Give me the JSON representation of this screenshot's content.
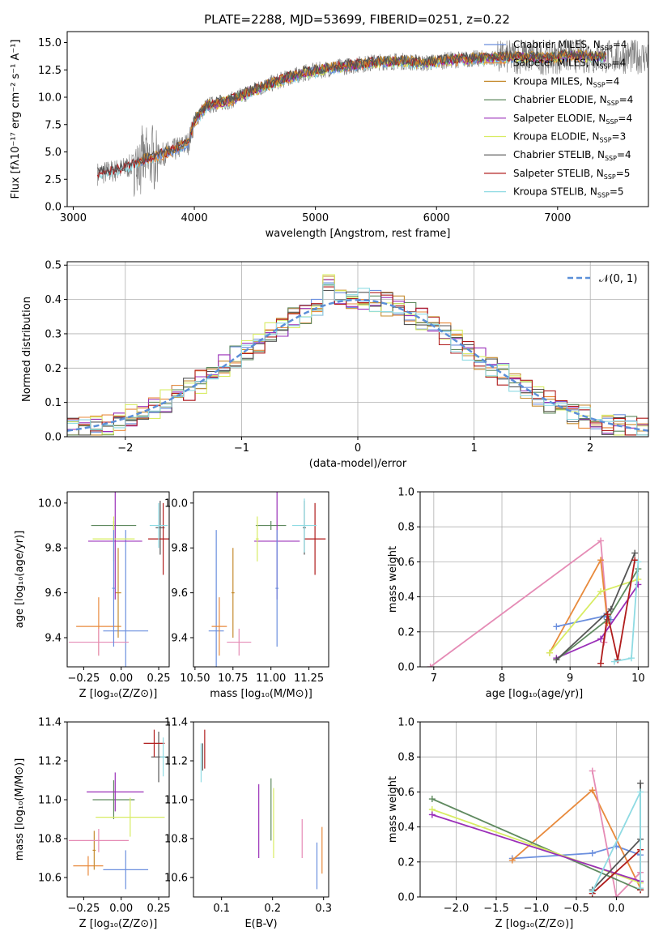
{
  "title": "PLATE=2288, MJD=53699, FIBERID=0251, z=0.22",
  "colors": {
    "chabrier_miles": "#6b8fde",
    "salpeter_miles": "#e88a3c",
    "kroupa_miles": "#c58b2e",
    "chabrier_elodie": "#5f8a5f",
    "salpeter_elodie": "#9a2fb8",
    "kroupa_elodie": "#d8ec63",
    "chabrier_stelib": "#555555",
    "salpeter_stelib": "#b01c1c",
    "kroupa_stelib": "#8fdbe3",
    "extra_pink": "#e58bb5",
    "normal": "#5b8fd8",
    "data_gray": "#777777"
  },
  "chart_data": [
    {
      "id": "spectrum",
      "type": "line",
      "xlabel": "wavelength [Angstrom, rest frame]",
      "ylabel": "Flux [fλ10⁻¹⁷ erg cm⁻² s⁻¹ A⁻¹]",
      "xlim": [
        2950,
        7750
      ],
      "ylim": [
        0,
        16
      ],
      "xticks": [
        "3000",
        "4000",
        "5000",
        "6000",
        "7000"
      ],
      "yticks": [
        "0.0",
        "2.5",
        "5.0",
        "7.5",
        "10.0",
        "12.5",
        "15.0"
      ],
      "grid": false,
      "legend_position": "top-right",
      "legend": [
        {
          "label": "Chabrier MILES, N",
          "sub": "SSP",
          "tail": "=4",
          "color_key": "chabrier_miles"
        },
        {
          "label": "Salpeter MILES, N",
          "sub": "SSP",
          "tail": "=4",
          "color_key": "salpeter_miles"
        },
        {
          "label": "Kroupa MILES, N",
          "sub": "SSP",
          "tail": "=4",
          "color_key": "kroupa_miles"
        },
        {
          "label": "Chabrier ELODIE, N",
          "sub": "SSP",
          "tail": "=4",
          "color_key": "chabrier_elodie"
        },
        {
          "label": "Salpeter ELODIE, N",
          "sub": "SSP",
          "tail": "=4",
          "color_key": "salpeter_elodie"
        },
        {
          "label": "Kroupa ELODIE, N",
          "sub": "SSP",
          "tail": "=3",
          "color_key": "kroupa_elodie"
        },
        {
          "label": "Chabrier STELIB, N",
          "sub": "SSP",
          "tail": "=4",
          "color_key": "chabrier_stelib"
        },
        {
          "label": "Salpeter STELIB, N",
          "sub": "SSP",
          "tail": "=5",
          "color_key": "salpeter_stelib"
        },
        {
          "label": "Kroupa STELIB, N",
          "sub": "SSP",
          "tail": "=5",
          "color_key": "kroupa_stelib"
        }
      ],
      "trend": {
        "x": [
          3200,
          3400,
          3600,
          3800,
          3950,
          4000,
          4100,
          4300,
          4500,
          4700,
          4900,
          5100,
          5300,
          5500,
          5700,
          5900,
          6100,
          6300,
          6500,
          6700,
          6900,
          7100,
          7300
        ],
        "y": [
          3.0,
          3.4,
          4.3,
          5.0,
          5.8,
          7.8,
          9.2,
          9.7,
          10.7,
          11.5,
          12.2,
          12.6,
          12.9,
          13.2,
          13.3,
          13.1,
          13.4,
          13.5,
          13.6,
          13.7,
          13.6,
          13.8,
          13.7
        ]
      }
    },
    {
      "id": "residuals",
      "type": "histogram",
      "xlabel": "(data-model)/error",
      "ylabel": "Normed distribution",
      "xlim": [
        -2.5,
        2.5
      ],
      "ylim": [
        0,
        0.51
      ],
      "xticks": [
        "−2",
        "−1",
        "0",
        "1",
        "2"
      ],
      "yticks": [
        "0.0",
        "0.1",
        "0.2",
        "0.3",
        "0.4",
        "0.5"
      ],
      "grid": true,
      "legend_position": "top-right",
      "legend": [
        {
          "label": "𝒩(0, 1)",
          "color_key": "normal",
          "style": "dashed"
        }
      ],
      "bin_width": 0.1
    },
    {
      "id": "age_vs_Z",
      "type": "errorbar",
      "xlabel": "Z [log₁₀(Z/Z⊙)]",
      "ylabel": "age  [log₁₀(age/yr)]",
      "xlim": [
        -0.36,
        0.32
      ],
      "ylim": [
        9.27,
        10.05
      ],
      "xticks": [
        "−0.25",
        "0.00",
        "0.25"
      ],
      "yticks": [
        "9.4",
        "9.6",
        "9.8",
        "10.0"
      ],
      "points": [
        {
          "color_key": "chabrier_miles",
          "x": 0.03,
          "xerr": 0.15,
          "y": 9.43,
          "yerr": 0.45
        },
        {
          "color_key": "salpeter_miles",
          "x": -0.15,
          "xerr": 0.15,
          "y": 9.45,
          "yerr": 0.13
        },
        {
          "color_key": "kroupa_miles",
          "x": -0.02,
          "xerr": 0.02,
          "y": 9.6,
          "yerr": 0.2
        },
        {
          "color_key": "chabrier_elodie",
          "x": -0.05,
          "xerr": 0.15,
          "y": 9.9,
          "yerr": 0.02
        },
        {
          "color_key": "salpeter_elodie",
          "x": -0.04,
          "xerr": 0.18,
          "y": 9.83,
          "yerr": 0.26
        },
        {
          "color_key": "kroupa_elodie",
          "x": -0.05,
          "xerr": 0.14,
          "y": 9.84,
          "yerr": 0.1
        },
        {
          "color_key": "chabrier_stelib",
          "x": 0.26,
          "xerr": 0.03,
          "y": 9.89,
          "yerr": 0.12
        },
        {
          "color_key": "salpeter_stelib",
          "x": 0.28,
          "xerr": 0.1,
          "y": 9.84,
          "yerr": 0.16
        },
        {
          "color_key": "kroupa_stelib",
          "x": 0.25,
          "xerr": 0.06,
          "y": 9.9,
          "yerr": 0.1
        },
        {
          "color_key": "extra_pink",
          "x": -0.15,
          "xerr": 0.2,
          "y": 9.38,
          "yerr": 0.06
        },
        {
          "color_key": "chabrier_miles",
          "x": -0.05,
          "xerr": 0.01,
          "y": 9.62,
          "yerr": 0.26
        }
      ]
    },
    {
      "id": "age_vs_mass",
      "type": "errorbar",
      "xlabel": "mass [log₁₀(M/M⊙)]",
      "ylabel": "",
      "xlim": [
        10.49,
        11.38
      ],
      "ylim": [
        9.27,
        10.05
      ],
      "xticks": [
        "10.50",
        "10.75",
        "11.00",
        "11.25"
      ],
      "yticks": [
        "9.4",
        "9.6",
        "9.8",
        "10.0"
      ],
      "points": [
        {
          "color_key": "chabrier_miles",
          "x": 10.64,
          "xerr": 0.05,
          "y": 9.43,
          "yerr": 0.45
        },
        {
          "color_key": "salpeter_miles",
          "x": 10.66,
          "xerr": 0.05,
          "y": 9.45,
          "yerr": 0.13
        },
        {
          "color_key": "kroupa_miles",
          "x": 10.75,
          "xerr": 0.01,
          "y": 9.6,
          "yerr": 0.2
        },
        {
          "color_key": "chabrier_elodie",
          "x": 11.0,
          "xerr": 0.1,
          "y": 9.9,
          "yerr": 0.02
        },
        {
          "color_key": "salpeter_elodie",
          "x": 11.04,
          "xerr": 0.15,
          "y": 9.83,
          "yerr": 0.26
        },
        {
          "color_key": "kroupa_elodie",
          "x": 10.91,
          "xerr": 0.01,
          "y": 9.84,
          "yerr": 0.1
        },
        {
          "color_key": "chabrier_stelib",
          "x": 11.22,
          "xerr": 0.01,
          "y": 9.89,
          "yerr": 0.12
        },
        {
          "color_key": "salpeter_stelib",
          "x": 11.29,
          "xerr": 0.07,
          "y": 9.84,
          "yerr": 0.16
        },
        {
          "color_key": "kroupa_stelib",
          "x": 11.22,
          "xerr": 0.08,
          "y": 9.9,
          "yerr": 0.12
        },
        {
          "color_key": "extra_pink",
          "x": 10.79,
          "xerr": 0.08,
          "y": 9.38,
          "yerr": 0.06
        },
        {
          "color_key": "chabrier_miles",
          "x": 11.04,
          "xerr": 0.01,
          "y": 9.62,
          "yerr": 0.26
        }
      ]
    },
    {
      "id": "mass_weight_vs_age",
      "type": "line",
      "xlabel": "age  [log₁₀(age/yr)]",
      "ylabel": "mass weight",
      "xlim": [
        6.8,
        10.15
      ],
      "ylim": [
        0,
        1.0
      ],
      "xticks": [
        "7",
        "8",
        "9",
        "10"
      ],
      "yticks": [
        "0.0",
        "0.2",
        "0.4",
        "0.6",
        "0.8",
        "1.0"
      ],
      "grid": true,
      "series": [
        {
          "color_key": "extra_pink",
          "x": [
            6.95,
            9.45,
            9.55,
            9.5
          ],
          "y": [
            0.0,
            0.72,
            0.27,
            0.14
          ]
        },
        {
          "color_key": "salpeter_miles",
          "x": [
            8.7,
            9.45,
            9.55
          ],
          "y": [
            0.08,
            0.61,
            0.25
          ]
        },
        {
          "color_key": "chabrier_miles",
          "x": [
            8.8,
            9.5,
            9.6
          ],
          "y": [
            0.23,
            0.29,
            0.27
          ]
        },
        {
          "color_key": "kroupa_elodie",
          "x": [
            8.7,
            9.45,
            10.0
          ],
          "y": [
            0.08,
            0.43,
            0.5
          ]
        },
        {
          "color_key": "salpeter_elodie",
          "x": [
            8.8,
            9.45,
            10.0
          ],
          "y": [
            0.05,
            0.16,
            0.47
          ]
        },
        {
          "color_key": "chabrier_elodie",
          "x": [
            8.8,
            9.55,
            10.0
          ],
          "y": [
            0.04,
            0.27,
            0.56
          ]
        },
        {
          "color_key": "chabrier_stelib",
          "x": [
            8.8,
            9.6,
            9.95
          ],
          "y": [
            0.04,
            0.33,
            0.65
          ]
        },
        {
          "color_key": "salpeter_stelib",
          "x": [
            9.45,
            9.55,
            9.7,
            9.95
          ],
          "y": [
            0.02,
            0.3,
            0.04,
            0.61
          ]
        },
        {
          "color_key": "kroupa_stelib",
          "x": [
            9.65,
            9.9,
            10.0
          ],
          "y": [
            0.03,
            0.05,
            0.6
          ]
        }
      ]
    },
    {
      "id": "mass_vs_Z",
      "type": "errorbar",
      "xlabel": "Z [log₁₀(Z/Z⊙)]",
      "ylabel": "mass [log₁₀(M/M⊙)]",
      "xlim": [
        -0.36,
        0.32
      ],
      "ylim": [
        10.5,
        11.4
      ],
      "xticks": [
        "−0.25",
        "0.00",
        "0.25"
      ],
      "yticks": [
        "10.6",
        "10.8",
        "11.0",
        "11.2",
        "11.4"
      ],
      "points": [
        {
          "color_key": "chabrier_miles",
          "x": 0.03,
          "xerr": 0.15,
          "y": 10.64,
          "yerr": 0.1
        },
        {
          "color_key": "salpeter_miles",
          "x": -0.22,
          "xerr": 0.1,
          "y": 10.66,
          "yerr": 0.05
        },
        {
          "color_key": "kroupa_miles",
          "x": -0.18,
          "xerr": 0.01,
          "y": 10.74,
          "yerr": 0.1
        },
        {
          "color_key": "chabrier_elodie",
          "x": -0.05,
          "xerr": 0.14,
          "y": 11.0,
          "yerr": 0.1
        },
        {
          "color_key": "salpeter_elodie",
          "x": -0.04,
          "xerr": 0.19,
          "y": 11.04,
          "yerr": 0.1
        },
        {
          "color_key": "kroupa_elodie",
          "x": 0.06,
          "xerr": 0.23,
          "y": 10.91,
          "yerr": 0.1
        },
        {
          "color_key": "chabrier_stelib",
          "x": 0.25,
          "xerr": 0.05,
          "y": 11.22,
          "yerr": 0.13
        },
        {
          "color_key": "salpeter_stelib",
          "x": 0.22,
          "xerr": 0.07,
          "y": 11.29,
          "yerr": 0.07
        },
        {
          "color_key": "kroupa_stelib",
          "x": 0.28,
          "xerr": 0.02,
          "y": 11.22,
          "yerr": 0.1
        },
        {
          "color_key": "extra_pink",
          "x": -0.15,
          "xerr": 0.2,
          "y": 10.79,
          "yerr": 0.06
        }
      ]
    },
    {
      "id": "mass_vs_ebv",
      "type": "errorbar",
      "xlabel": "E(B-V)",
      "ylabel": "",
      "xlim": [
        0.045,
        0.31
      ],
      "ylim": [
        10.5,
        11.4
      ],
      "xticks": [
        "0.1",
        "0.2",
        "0.3"
      ],
      "yticks": [
        "10.6",
        "10.8",
        "11.0",
        "11.2",
        "11.4"
      ],
      "points": [
        {
          "color_key": "chabrier_miles",
          "x": 0.287,
          "xerr": 0.0,
          "y": 10.66,
          "yerr": 0.12
        },
        {
          "color_key": "salpeter_miles",
          "x": 0.297,
          "xerr": 0.0,
          "y": 10.74,
          "yerr": 0.12
        },
        {
          "color_key": "chabrier_elodie",
          "x": 0.197,
          "xerr": 0.0,
          "y": 10.95,
          "yerr": 0.16
        },
        {
          "color_key": "salpeter_elodie",
          "x": 0.173,
          "xerr": 0.0,
          "y": 10.89,
          "yerr": 0.19
        },
        {
          "color_key": "kroupa_elodie",
          "x": 0.202,
          "xerr": 0.0,
          "y": 10.88,
          "yerr": 0.18
        },
        {
          "color_key": "extra_pink",
          "x": 0.258,
          "xerr": 0.0,
          "y": 10.8,
          "yerr": 0.1
        },
        {
          "color_key": "chabrier_stelib",
          "x": 0.063,
          "xerr": 0.0,
          "y": 11.22,
          "yerr": 0.07
        },
        {
          "color_key": "salpeter_stelib",
          "x": 0.067,
          "xerr": 0.0,
          "y": 11.26,
          "yerr": 0.1
        },
        {
          "color_key": "kroupa_stelib",
          "x": 0.06,
          "xerr": 0.0,
          "y": 11.19,
          "yerr": 0.1
        }
      ]
    },
    {
      "id": "mass_weight_vs_Z",
      "type": "line",
      "xlabel": "Z [log₁₀(Z/Z⊙)]",
      "ylabel": "mass weight",
      "xlim": [
        -2.45,
        0.4
      ],
      "ylim": [
        0,
        1.0
      ],
      "xticks": [
        "−2.0",
        "−1.5",
        "−1.0",
        "−0.5",
        "0.0"
      ],
      "yticks": [
        "0.0",
        "0.2",
        "0.4",
        "0.6",
        "0.8",
        "1.0"
      ],
      "grid": true,
      "series": [
        {
          "color_key": "chabrier_miles",
          "x": [
            -1.3,
            -0.3,
            0.0,
            0.3
          ],
          "y": [
            0.22,
            0.25,
            0.29,
            0.24
          ]
        },
        {
          "color_key": "salpeter_miles",
          "x": [
            -1.3,
            -0.3,
            0.3
          ],
          "y": [
            0.21,
            0.61,
            0.05
          ]
        },
        {
          "color_key": "extra_pink",
          "x": [
            -0.3,
            0.0,
            0.3
          ],
          "y": [
            0.72,
            0.0,
            0.14
          ]
        },
        {
          "color_key": "chabrier_elodie",
          "x": [
            -2.3,
            0.3
          ],
          "y": [
            0.56,
            0.04
          ]
        },
        {
          "color_key": "kroupa_elodie",
          "x": [
            -2.3,
            0.3
          ],
          "y": [
            0.5,
            0.08
          ]
        },
        {
          "color_key": "salpeter_elodie",
          "x": [
            -2.3,
            0.3
          ],
          "y": [
            0.47,
            0.09
          ]
        },
        {
          "color_key": "chabrier_stelib",
          "x": [
            -0.3,
            0.3,
            0.3
          ],
          "y": [
            0.04,
            0.33,
            0.65
          ]
        },
        {
          "color_key": "salpeter_stelib",
          "x": [
            -0.3,
            0.3,
            0.3
          ],
          "y": [
            0.02,
            0.27,
            0.04
          ]
        },
        {
          "color_key": "kroupa_stelib",
          "x": [
            -0.3,
            0.3,
            0.3
          ],
          "y": [
            0.03,
            0.6,
            0.05
          ]
        }
      ]
    }
  ]
}
